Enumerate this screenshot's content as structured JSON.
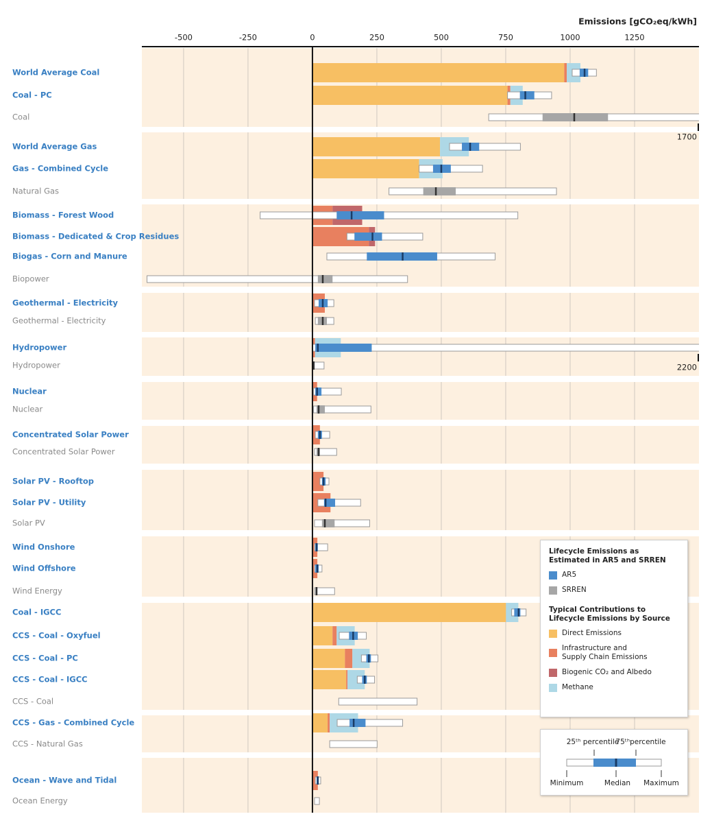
{
  "chart_data": {
    "type": "lifecycle-range",
    "x_label": "Emissions [gCO₂eq/kWh]",
    "xlim": [
      -662,
      1500
    ],
    "xticks": [
      -500,
      -250,
      0,
      250,
      500,
      750,
      1000,
      1250
    ],
    "grid": true,
    "sources": [
      {
        "name": "AR5",
        "color": "#4a8ccc"
      },
      {
        "name": "SRREN",
        "color": "#a6a6a6"
      }
    ],
    "contributions": [
      {
        "name": "Direct Emissions",
        "color": "#f7bf63"
      },
      {
        "name": "Infrastructure and Supply Chain Emissions",
        "color": "#e8805f"
      },
      {
        "name": "Biogenic CO₂ and Albedo",
        "color": "#c0676a"
      },
      {
        "name": "Methane",
        "color": "#aed8e6"
      }
    ],
    "legend": {
      "source_title": "Lifecycle Emissions as Estimated in AR5 and SRREN",
      "contribution_title": "Typical Contributions to Lifecycle Emissions by Source"
    },
    "percentile_key": {
      "p25": "25ᵗʰ percentile",
      "p75": "75ᵗʰpercentile",
      "min": "Minimum",
      "median": "Median",
      "max": "Maximum"
    },
    "groups": [
      {
        "rows": [
          {
            "label": "World Average Coal",
            "source": "AR5",
            "contributions": [
              977,
              10,
              null,
              53
            ],
            "box": {
              "min": 1008,
              "p25": 1037,
              "median": 1056,
              "p75": 1070,
              "max": 1102
            }
          },
          {
            "label": "Coal - PC",
            "source": "AR5",
            "contributions": [
              757,
              11,
              null,
              48
            ],
            "box": {
              "min": 757,
              "p25": 805,
              "median": 826,
              "p75": 861,
              "max": 928
            }
          },
          {
            "label": "Coal",
            "source": "SRREN",
            "box": {
              "min": 684,
              "p25": 893,
              "median": 1016,
              "p75": 1147,
              "max": 1700
            }
          }
        ]
      },
      {
        "rows": [
          {
            "label": "World Average Gas",
            "source": "AR5",
            "contributions": [
              495,
              null,
              null,
              112
            ],
            "box": {
              "min": 532,
              "p25": 580,
              "median": 612,
              "p75": 647,
              "max": 807
            }
          },
          {
            "label": "Gas - Combined Cycle",
            "source": "AR5",
            "contributions": [
              414,
              null,
              null,
              91
            ],
            "box": {
              "min": 414,
              "p25": 468,
              "median": 500,
              "p75": 537,
              "max": 660
            }
          },
          {
            "label": "Natural Gas",
            "source": "SRREN",
            "box": {
              "min": 297,
              "p25": 430,
              "median": 479,
              "p75": 556,
              "max": 947
            }
          }
        ]
      },
      {
        "rows": [
          {
            "label": "Biomass - Forest Wood",
            "source": "AR5",
            "contributions": [
              null,
              78,
              115,
              null
            ],
            "box": {
              "min": -203,
              "p25": 94,
              "median": 152,
              "p75": 278,
              "max": 797
            }
          },
          {
            "label": "Biomass - Dedicated & Crop Residues",
            "source": "AR5",
            "contributions": [
              null,
              219,
              24,
              null
            ],
            "box": {
              "min": 134,
              "p25": 163,
              "median": 233,
              "p75": 270,
              "max": 428
            }
          },
          {
            "label": "Biogas - Corn and Manure",
            "source": "AR5",
            "box": {
              "min": 56,
              "p25": 211,
              "median": 350,
              "p75": 484,
              "max": 709
            }
          },
          {
            "label": "Biopower",
            "source": "SRREN",
            "box": {
              "min": -642,
              "p25": 21,
              "median": 40,
              "p75": 78,
              "max": 369
            }
          }
        ]
      },
      {
        "rows": [
          {
            "label": "Geothermal - Electricity",
            "source": "AR5",
            "contributions": [
              null,
              48,
              null,
              null
            ],
            "box": {
              "min": 8,
              "p25": 24,
              "median": 40,
              "p75": 59,
              "max": 83
            }
          },
          {
            "label": "Geothermal - Electricity",
            "source": "SRREN",
            "box": {
              "min": 11,
              "p25": 21,
              "median": 40,
              "p75": 56,
              "max": 83
            }
          }
        ]
      },
      {
        "rows": [
          {
            "label": "Hydropower",
            "source": "AR5",
            "contributions": [
              null,
              10,
              null,
              100
            ],
            "box": {
              "min": 1,
              "p25": 11,
              "median": 21,
              "p75": 230,
              "max": 2200
            }
          },
          {
            "label": "Hydropower",
            "source": "SRREN",
            "box": {
              "min": 0,
              "p25": 2,
              "median": 5,
              "p75": 8,
              "max": 45
            }
          }
        ]
      },
      {
        "rows": [
          {
            "label": "Nuclear",
            "source": "AR5",
            "contributions": [
              null,
              18,
              null,
              null
            ],
            "box": {
              "min": 4,
              "p25": 11,
              "median": 18,
              "p75": 35,
              "max": 112
            }
          },
          {
            "label": "Nuclear",
            "source": "SRREN",
            "box": {
              "min": 4,
              "p25": 16,
              "median": 24,
              "p75": 48,
              "max": 227
            }
          }
        ]
      },
      {
        "rows": [
          {
            "label": "Concentrated Solar Power",
            "source": "AR5",
            "contributions": [
              null,
              29,
              null,
              null
            ],
            "box": {
              "min": 11,
              "p25": 21,
              "median": 29,
              "p75": 37,
              "max": 67
            }
          },
          {
            "label": "Concentrated Solar Power",
            "source": "SRREN",
            "box": {
              "min": 8,
              "p25": 16,
              "median": 24,
              "p75": 29,
              "max": 94
            }
          }
        ]
      },
      {
        "rows": [
          {
            "label": "Solar PV - Rooftop",
            "source": "AR5",
            "contributions": [
              null,
              43,
              null,
              null
            ],
            "box": {
              "min": 29,
              "p25": 37,
              "median": 43,
              "p75": 51,
              "max": 64
            }
          },
          {
            "label": "Solar PV - Utility",
            "source": "AR5",
            "contributions": [
              null,
              70,
              null,
              null
            ],
            "box": {
              "min": 21,
              "p25": 45,
              "median": 51,
              "p75": 88,
              "max": 187
            }
          },
          {
            "label": "Solar PV",
            "source": "SRREN",
            "box": {
              "min": 8,
              "p25": 37,
              "median": 48,
              "p75": 86,
              "max": 222
            }
          }
        ]
      },
      {
        "rows": [
          {
            "label": "Wind Onshore",
            "source": "AR5",
            "contributions": [
              null,
              19,
              null,
              null
            ],
            "box": {
              "min": 8,
              "p25": 11,
              "median": 16,
              "p75": 21,
              "max": 59
            }
          },
          {
            "label": "Wind Offshore",
            "source": "AR5",
            "contributions": [
              null,
              19,
              null,
              null
            ],
            "box": {
              "min": 8,
              "p25": 11,
              "median": 19,
              "p75": 24,
              "max": 37
            }
          },
          {
            "label": "Wind Energy",
            "source": "SRREN",
            "box": {
              "min": 8,
              "p25": 11,
              "median": 16,
              "p75": 19,
              "max": 86
            }
          }
        ]
      },
      {
        "rows": [
          {
            "label": "Coal - IGCC",
            "source": "AR5",
            "contributions": [
              751,
              null,
              null,
              48
            ],
            "box": {
              "min": 773,
              "p25": 783,
              "median": 800,
              "p75": 807,
              "max": 829
            }
          },
          {
            "label": "CCS - Coal - Oxyfuel",
            "source": "AR5",
            "contributions": [
              78,
              16,
              null,
              70
            ],
            "box": {
              "min": 104,
              "p25": 142,
              "median": 158,
              "p75": 176,
              "max": 209
            }
          },
          {
            "label": "CCS -  Coal - PC",
            "source": "AR5",
            "contributions": [
              126,
              29,
              null,
              67
            ],
            "box": {
              "min": 190,
              "p25": 209,
              "median": 219,
              "p75": 227,
              "max": 254
            }
          },
          {
            "label": "CCS - Coal - IGCC",
            "source": "AR5",
            "contributions": [
              131,
              5,
              null,
              67
            ],
            "box": {
              "min": 174,
              "p25": 193,
              "median": 203,
              "p75": 211,
              "max": 241
            }
          },
          {
            "label": "CCS - Coal",
            "source": "SRREN",
            "box": {
              "min": 102,
              "max": 406
            }
          }
        ]
      },
      {
        "rows": [
          {
            "label": "CCS - Gas - Combined Cycle",
            "source": "AR5",
            "contributions": [
              59,
              8,
              null,
              110
            ],
            "box": {
              "min": 96,
              "p25": 144,
              "median": 160,
              "p75": 206,
              "max": 350
            }
          },
          {
            "label": "CCS - Natural Gas",
            "source": "SRREN",
            "box": {
              "min": 67,
              "max": 251
            }
          }
        ]
      },
      {
        "rows": [
          {
            "label": "Ocean - Wave and Tidal",
            "source": "AR5",
            "contributions": [
              null,
              21,
              null,
              null
            ],
            "box": {
              "min": 11,
              "p25": 16,
              "median": 21,
              "p75": 24,
              "max": 32
            }
          },
          {
            "label": "Ocean Energy",
            "source": "SRREN",
            "box": {
              "min": 8,
              "max": 27
            }
          }
        ]
      }
    ]
  }
}
